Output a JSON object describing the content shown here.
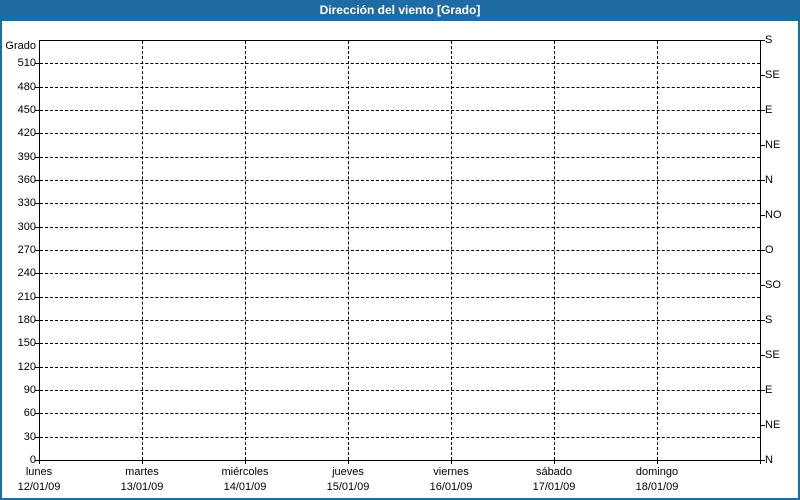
{
  "window": {
    "title": "Dirección del viento [Grado]"
  },
  "colors": {
    "titlebar_bg": "#1E6CA3",
    "window_border": "#1E6CA3",
    "grid": "#000000",
    "text": "#000000",
    "plot_bg": "#FFFFFF"
  },
  "chart_data": {
    "type": "line",
    "title": "Dirección del viento [Grado]",
    "ylabel": "Grado",
    "ylim": [
      0,
      540
    ],
    "y_tick_step_left": 30,
    "y_ticks_left": [
      0,
      30,
      60,
      90,
      120,
      150,
      180,
      210,
      240,
      270,
      300,
      330,
      360,
      390,
      420,
      450,
      480,
      510
    ],
    "y_ticks_right": [
      {
        "value": 540,
        "label": "S"
      },
      {
        "value": 495,
        "label": "SE"
      },
      {
        "value": 450,
        "label": "E"
      },
      {
        "value": 405,
        "label": "NE"
      },
      {
        "value": 360,
        "label": "N"
      },
      {
        "value": 315,
        "label": "NO"
      },
      {
        "value": 270,
        "label": "O"
      },
      {
        "value": 225,
        "label": "SO"
      },
      {
        "value": 180,
        "label": "S"
      },
      {
        "value": 135,
        "label": "SE"
      },
      {
        "value": 90,
        "label": "E"
      },
      {
        "value": 45,
        "label": "NE"
      },
      {
        "value": 0,
        "label": "N"
      }
    ],
    "x_divisions": 7,
    "x_days": [
      {
        "name": "lunes",
        "date": "12/01/09"
      },
      {
        "name": "martes",
        "date": "13/01/09"
      },
      {
        "name": "miércoles",
        "date": "14/01/09"
      },
      {
        "name": "jueves",
        "date": "15/01/09"
      },
      {
        "name": "viernes",
        "date": "16/01/09"
      },
      {
        "name": "sábado",
        "date": "17/01/09"
      },
      {
        "name": "domingo",
        "date": "18/01/09"
      }
    ],
    "grid": true,
    "legend": false,
    "series": []
  }
}
